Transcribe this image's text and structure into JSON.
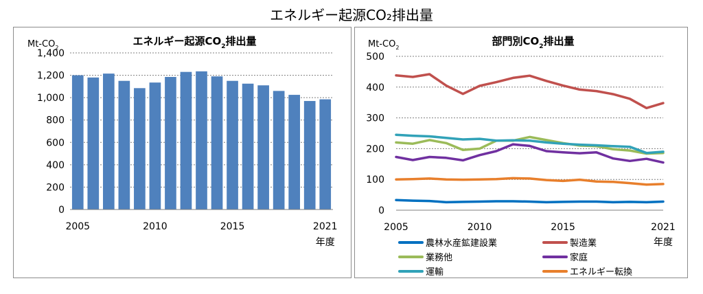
{
  "title": "エネルギー起源CO₂排出量",
  "chart_data": [
    {
      "type": "bar",
      "title_main": "エネルギー起源CO",
      "title_sub": "2",
      "title_tail": "排出量",
      "unit_main": "Mt-CO",
      "unit_sub": "2",
      "xlabel": "年度",
      "x": [
        2005,
        2006,
        2007,
        2008,
        2009,
        2010,
        2011,
        2012,
        2013,
        2014,
        2015,
        2016,
        2017,
        2018,
        2019,
        2020,
        2021
      ],
      "values": [
        1200,
        1180,
        1215,
        1150,
        1085,
        1135,
        1185,
        1230,
        1235,
        1190,
        1150,
        1125,
        1110,
        1060,
        1025,
        970,
        985
      ],
      "ylim": [
        0,
        1400
      ],
      "yticks": [
        0,
        200,
        400,
        600,
        800,
        1000,
        1200,
        1400
      ],
      "ytick_labels": [
        "0",
        "200",
        "400",
        "600",
        "800",
        "1,000",
        "1,200",
        "1,400"
      ],
      "xtick_labels": [
        "2005",
        "2010",
        "2015",
        "2021"
      ],
      "bar_color": "#4f81bd",
      "grid": true
    },
    {
      "type": "line",
      "title_main": "部門別CO",
      "title_sub": "2",
      "title_tail": "排出量",
      "unit_main": "Mt-CO",
      "unit_sub": "2",
      "xlabel": "年度",
      "x": [
        2005,
        2006,
        2007,
        2008,
        2009,
        2010,
        2011,
        2012,
        2013,
        2014,
        2015,
        2016,
        2017,
        2018,
        2019,
        2020,
        2021
      ],
      "ylim": [
        0,
        500
      ],
      "yticks": [
        0,
        100,
        200,
        300,
        400,
        500
      ],
      "xtick_labels": [
        "2005",
        "2010",
        "2015",
        "2021"
      ],
      "grid": true,
      "series": [
        {
          "name": "農林水産鉱建設業",
          "color": "#0070c0",
          "values": [
            33,
            31,
            30,
            26,
            27,
            28,
            29,
            29,
            28,
            26,
            27,
            28,
            28,
            26,
            27,
            26,
            28
          ]
        },
        {
          "name": "製造業",
          "color": "#c0504d",
          "values": [
            438,
            433,
            442,
            405,
            378,
            404,
            416,
            430,
            437,
            420,
            405,
            392,
            387,
            377,
            362,
            332,
            348
          ]
        },
        {
          "name": "業務他",
          "color": "#9bbb59",
          "values": [
            220,
            216,
            228,
            218,
            196,
            200,
            226,
            226,
            238,
            228,
            218,
            210,
            208,
            198,
            194,
            184,
            186
          ]
        },
        {
          "name": "家庭",
          "color": "#7030a0",
          "values": [
            173,
            163,
            173,
            170,
            162,
            179,
            192,
            214,
            209,
            192,
            188,
            185,
            188,
            168,
            160,
            167,
            155
          ]
        },
        {
          "name": "運輸",
          "color": "#31a2b8",
          "values": [
            245,
            242,
            240,
            235,
            230,
            232,
            226,
            227,
            226,
            220,
            216,
            213,
            211,
            208,
            206,
            186,
            190
          ]
        },
        {
          "name": "エネルギー転換",
          "color": "#e87f2c",
          "values": [
            100,
            101,
            103,
            100,
            99,
            100,
            101,
            104,
            103,
            98,
            95,
            99,
            93,
            92,
            88,
            83,
            85
          ]
        }
      ]
    }
  ]
}
